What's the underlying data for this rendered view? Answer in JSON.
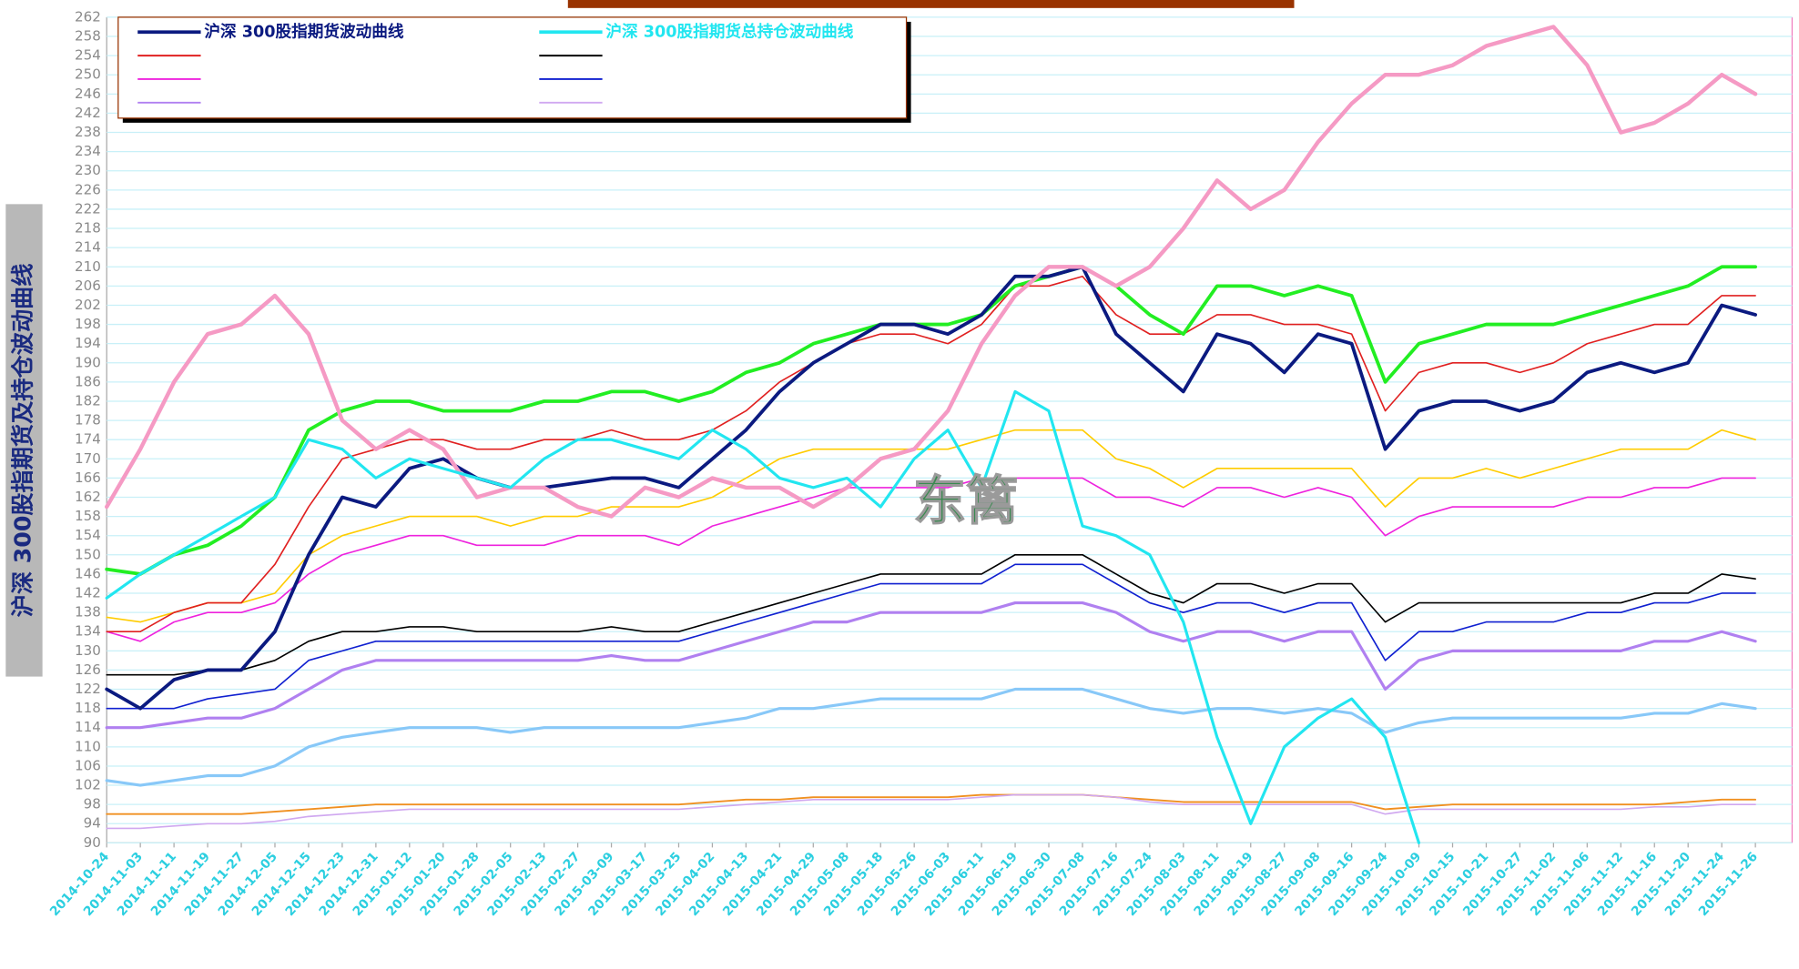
{
  "chart_data": {
    "type": "line",
    "y_label": "沪深 300股指期货及持仓波动曲线",
    "watermark": "东篱",
    "categories": [
      "2014-10-24",
      "2014-11-03",
      "2014-11-11",
      "2014-11-19",
      "2014-11-27",
      "2014-12-05",
      "2014-12-15",
      "2014-12-23",
      "2014-12-31",
      "2015-01-12",
      "2015-01-20",
      "2015-01-28",
      "2015-02-05",
      "2015-02-13",
      "2015-02-27",
      "2015-03-09",
      "2015-03-17",
      "2015-03-25",
      "2015-04-02",
      "2015-04-13",
      "2015-04-21",
      "2015-04-29",
      "2015-05-08",
      "2015-05-18",
      "2015-05-26",
      "2015-06-03",
      "2015-06-11",
      "2015-06-19",
      "2015-06-30",
      "2015-07-08",
      "2015-07-16",
      "2015-07-24",
      "2015-08-03",
      "2015-08-11",
      "2015-08-19",
      "2015-08-27",
      "2015-09-08",
      "2015-09-16",
      "2015-09-24",
      "2015-10-09",
      "2015-10-15",
      "2015-10-21",
      "2015-10-27",
      "2015-11-02",
      "2015-11-06",
      "2015-11-12",
      "2015-11-16",
      "2015-11-20",
      "2015-11-24",
      "2015-11-26"
    ],
    "ylim": [
      90,
      262
    ],
    "yticks": [
      90,
      94,
      98,
      102,
      106,
      110,
      114,
      118,
      122,
      126,
      130,
      134,
      138,
      142,
      146,
      150,
      154,
      158,
      162,
      166,
      170,
      174,
      178,
      182,
      186,
      190,
      194,
      198,
      202,
      206,
      210,
      214,
      218,
      222,
      226,
      230,
      234,
      238,
      242,
      246,
      250,
      254,
      258,
      262
    ],
    "grid": true,
    "legend": "top-left",
    "series": [
      {
        "name": "沪深 300股指期货波动曲线",
        "color": "#0b1a80",
        "in_legend": true,
        "values": [
          122,
          118,
          124,
          126,
          126,
          134,
          150,
          162,
          160,
          168,
          170,
          166,
          164,
          164,
          165,
          166,
          166,
          164,
          170,
          176,
          184,
          190,
          194,
          198,
          198,
          196,
          200,
          208,
          208,
          210,
          196,
          190,
          184,
          196,
          194,
          188,
          196,
          194,
          172,
          180,
          182,
          182,
          180,
          182,
          188,
          190,
          188,
          190,
          202,
          200
        ]
      },
      {
        "name": "沪深 300股指期货总持仓波动曲线",
        "color": "#22e6f0",
        "in_legend": true,
        "values": [
          141,
          146,
          150,
          154,
          158,
          162,
          174,
          172,
          166,
          170,
          168,
          166,
          164,
          170,
          174,
          174,
          172,
          170,
          176,
          172,
          166,
          164,
          166,
          160,
          170,
          176,
          164,
          184,
          180,
          156,
          154,
          150,
          136,
          112,
          94,
          110,
          116,
          120,
          112,
          90,
          null,
          null,
          null,
          null,
          null,
          null,
          null,
          null,
          null,
          null
        ]
      },
      {
        "color": "#e02020",
        "in_legend": true,
        "values": [
          134,
          134,
          138,
          140,
          140,
          148,
          160,
          170,
          172,
          174,
          174,
          172,
          172,
          174,
          174,
          176,
          174,
          174,
          176,
          180,
          186,
          190,
          194,
          196,
          196,
          194,
          198,
          206,
          206,
          208,
          200,
          196,
          196,
          200,
          200,
          198,
          198,
          196,
          180,
          188,
          190,
          190,
          188,
          190,
          194,
          196,
          198,
          198,
          204,
          204
        ]
      },
      {
        "color": "#000000",
        "in_legend": true,
        "values": [
          125,
          125,
          125,
          126,
          126,
          128,
          132,
          134,
          134,
          135,
          135,
          134,
          134,
          134,
          134,
          135,
          134,
          134,
          136,
          138,
          140,
          142,
          144,
          146,
          146,
          146,
          146,
          150,
          150,
          150,
          146,
          142,
          140,
          144,
          144,
          142,
          144,
          144,
          136,
          140,
          140,
          140,
          140,
          140,
          140,
          140,
          142,
          142,
          146,
          145
        ]
      },
      {
        "color": "#ee22dd",
        "in_legend": true,
        "values": [
          134,
          132,
          136,
          138,
          138,
          140,
          146,
          150,
          152,
          154,
          154,
          152,
          152,
          152,
          154,
          154,
          154,
          152,
          156,
          158,
          160,
          162,
          164,
          164,
          164,
          164,
          166,
          166,
          166,
          166,
          162,
          162,
          160,
          164,
          164,
          162,
          164,
          162,
          154,
          158,
          160,
          160,
          160,
          160,
          162,
          162,
          164,
          164,
          166,
          166
        ]
      },
      {
        "color": "#1020d0",
        "in_legend": true,
        "values": [
          118,
          118,
          118,
          120,
          121,
          122,
          128,
          130,
          132,
          132,
          132,
          132,
          132,
          132,
          132,
          132,
          132,
          132,
          134,
          136,
          138,
          140,
          142,
          144,
          144,
          144,
          144,
          148,
          148,
          148,
          144,
          140,
          138,
          140,
          140,
          138,
          140,
          140,
          128,
          134,
          134,
          136,
          136,
          136,
          138,
          138,
          140,
          140,
          142,
          142
        ]
      },
      {
        "color": "#b080f0",
        "in_legend": true,
        "values": [
          114,
          114,
          115,
          116,
          116,
          118,
          122,
          126,
          128,
          128,
          128,
          128,
          128,
          128,
          128,
          129,
          128,
          128,
          130,
          132,
          134,
          136,
          136,
          138,
          138,
          138,
          138,
          140,
          140,
          140,
          138,
          134,
          132,
          134,
          134,
          132,
          134,
          134,
          122,
          128,
          130,
          130,
          130,
          130,
          130,
          130,
          132,
          132,
          134,
          132
        ]
      },
      {
        "color": "#d0a8f0",
        "in_legend": true,
        "values": [
          93,
          93,
          93.5,
          94,
          94,
          94.5,
          95.5,
          96,
          96.5,
          97,
          97,
          97,
          97,
          97,
          97,
          97,
          97,
          97,
          97.5,
          98,
          98.5,
          99,
          99,
          99,
          99,
          99,
          99.5,
          100,
          100,
          100,
          99.5,
          98.5,
          98,
          98,
          98,
          98,
          98,
          98,
          96,
          97,
          97,
          97,
          97,
          97,
          97,
          97,
          97.5,
          97.5,
          98,
          98
        ]
      },
      {
        "color": "#22ee22",
        "in_legend": false,
        "values": [
          147,
          146,
          150,
          152,
          156,
          162,
          176,
          180,
          182,
          182,
          180,
          180,
          180,
          182,
          182,
          184,
          184,
          182,
          184,
          188,
          190,
          194,
          196,
          198,
          198,
          198,
          200,
          206,
          208,
          210,
          206,
          200,
          196,
          206,
          206,
          204,
          206,
          204,
          186,
          194,
          196,
          198,
          198,
          198,
          200,
          202,
          204,
          206,
          210,
          210
        ]
      },
      {
        "color": "#f59ac4",
        "in_legend": false,
        "values": [
          160,
          172,
          186,
          196,
          198,
          204,
          196,
          178,
          172,
          176,
          172,
          162,
          164,
          164,
          160,
          158,
          164,
          162,
          166,
          164,
          164,
          160,
          164,
          170,
          172,
          180,
          194,
          204,
          210,
          210,
          206,
          210,
          218,
          228,
          222,
          226,
          236,
          244,
          250,
          250,
          252,
          256,
          258,
          260,
          252,
          238,
          240,
          244,
          250,
          246
        ]
      },
      {
        "color": "#ffcc00",
        "in_legend": false,
        "values": [
          137,
          136,
          138,
          140,
          140,
          142,
          150,
          154,
          156,
          158,
          158,
          158,
          156,
          158,
          158,
          160,
          160,
          160,
          162,
          166,
          170,
          172,
          172,
          172,
          172,
          172,
          174,
          176,
          176,
          176,
          170,
          168,
          164,
          168,
          168,
          168,
          168,
          168,
          160,
          166,
          166,
          168,
          166,
          168,
          170,
          172,
          172,
          172,
          176,
          174
        ]
      },
      {
        "color": "#88c8f8",
        "in_legend": false,
        "values": [
          103,
          102,
          103,
          104,
          104,
          106,
          110,
          112,
          113,
          114,
          114,
          114,
          113,
          114,
          114,
          114,
          114,
          114,
          115,
          116,
          118,
          118,
          119,
          120,
          120,
          120,
          120,
          122,
          122,
          122,
          120,
          118,
          117,
          118,
          118,
          117,
          118,
          117,
          113,
          115,
          116,
          116,
          116,
          116,
          116,
          116,
          117,
          117,
          119,
          118
        ]
      },
      {
        "color": "#f09020",
        "in_legend": false,
        "values": [
          96,
          96,
          96,
          96,
          96,
          96.5,
          97,
          97.5,
          98,
          98,
          98,
          98,
          98,
          98,
          98,
          98,
          98,
          98,
          98.5,
          99,
          99,
          99.5,
          99.5,
          99.5,
          99.5,
          99.5,
          100,
          100,
          100,
          100,
          99.5,
          99,
          98.5,
          98.5,
          98.5,
          98.5,
          98.5,
          98.5,
          97,
          97.5,
          98,
          98,
          98,
          98,
          98,
          98,
          98,
          98.5,
          99,
          99
        ]
      }
    ]
  }
}
